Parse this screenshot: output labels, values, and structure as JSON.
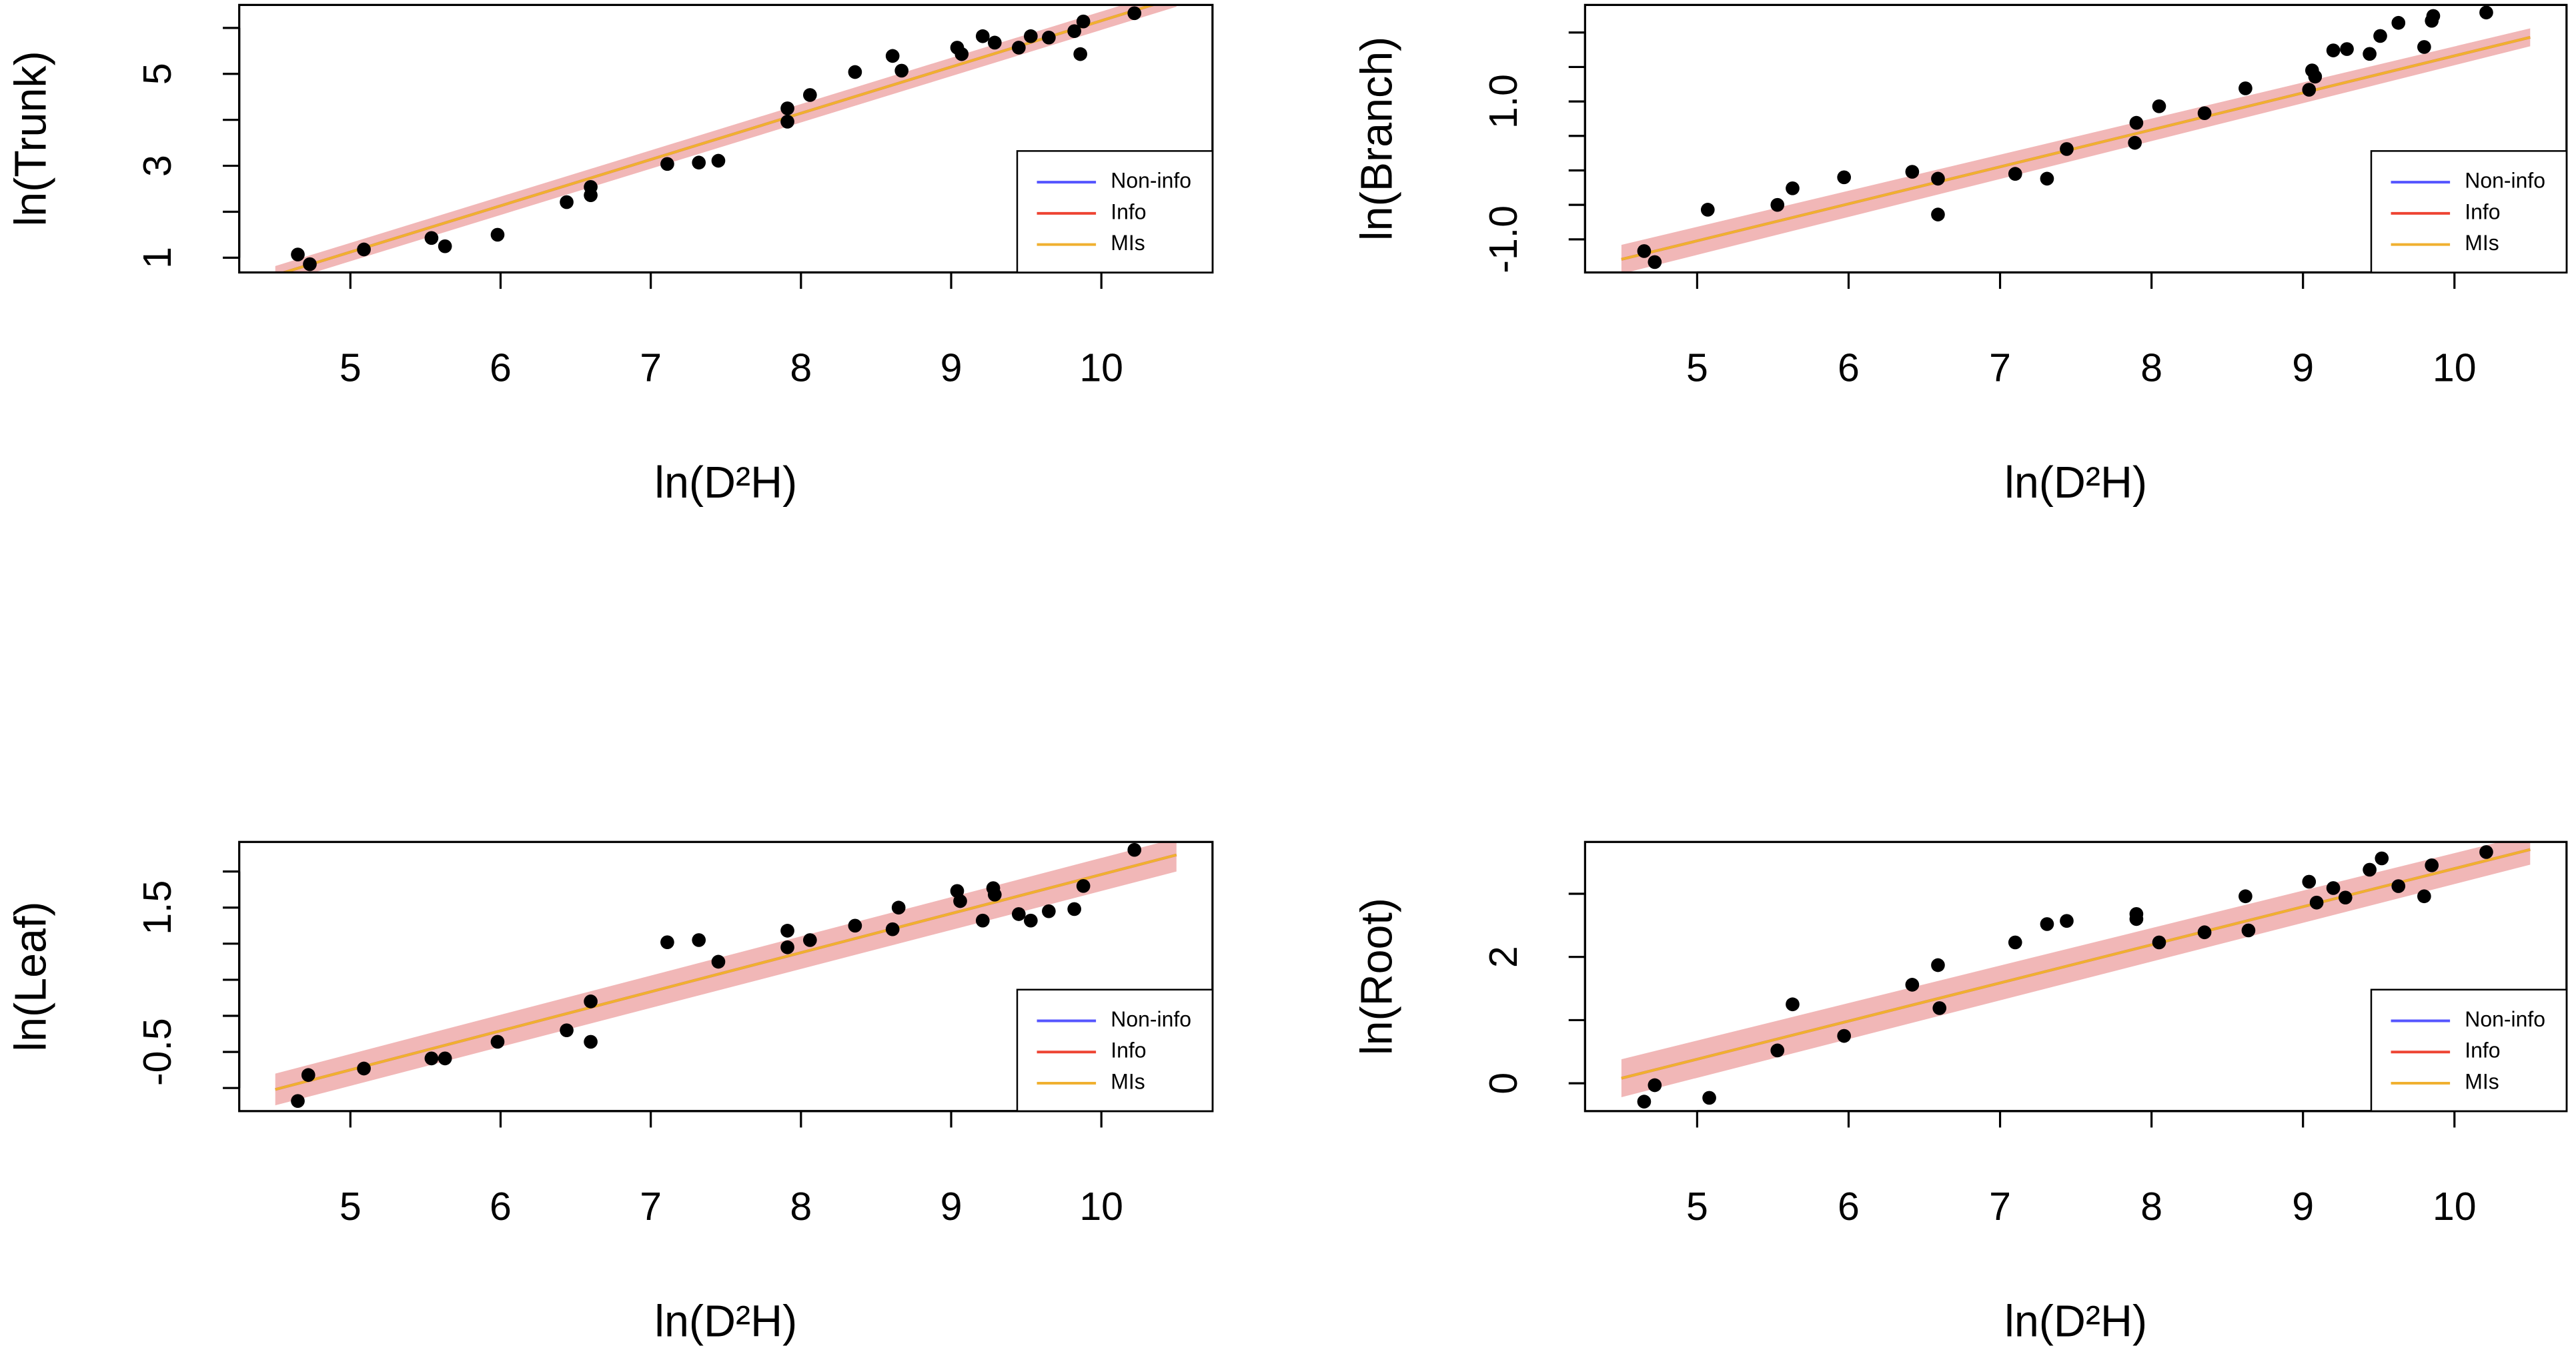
{
  "chart_data": [
    {
      "type": "scatter",
      "xlabel": "ln(D²H)",
      "ylabel": "ln(Trunk)",
      "x": [
        4.65,
        4.73,
        5.09,
        5.54,
        5.63,
        5.98,
        6.44,
        6.6,
        6.6,
        7.11,
        7.32,
        7.45,
        7.91,
        7.91,
        8.06,
        8.36,
        8.61,
        8.67,
        9.04,
        9.07,
        9.21,
        9.29,
        9.45,
        9.53,
        9.65,
        9.82,
        9.86,
        9.88,
        10.22
      ],
      "y": [
        1.07,
        0.86,
        1.18,
        1.43,
        1.25,
        1.5,
        2.21,
        2.54,
        2.36,
        3.04,
        3.07,
        3.11,
        4.25,
        3.96,
        4.54,
        5.04,
        5.39,
        5.07,
        5.57,
        5.43,
        5.82,
        5.68,
        5.57,
        5.82,
        5.79,
        5.93,
        5.43,
        6.14,
        6.32
      ],
      "point_color": "#000000",
      "band": {
        "x": [
          4.5,
          10.5
        ],
        "lower": [
          0.42,
          6.46
        ],
        "upper": [
          0.82,
          6.86
        ],
        "color": "#e06060"
      },
      "series": [
        {
          "name": "Non-info",
          "color": "#5555ff",
          "x": [
            4.5,
            10.5
          ],
          "values": [
            0.62,
            6.66
          ]
        },
        {
          "name": "Info",
          "color": "#ee4433",
          "x": [
            4.5,
            10.5
          ],
          "values": [
            0.62,
            6.66
          ]
        },
        {
          "name": "MIs",
          "color": "#f0b030",
          "x": [
            4.5,
            10.5
          ],
          "values": [
            0.62,
            6.66
          ]
        }
      ],
      "xlim": [
        4.26,
        10.74
      ],
      "ylim": [
        0.68,
        6.5
      ],
      "xticks": [
        5,
        6,
        7,
        8,
        9,
        10
      ],
      "yticks": [
        1,
        3,
        5
      ],
      "yticks_unlabeled": [
        2,
        4,
        6
      ],
      "legend": "bottomright"
    },
    {
      "type": "scatter",
      "xlabel": "ln(D²H)",
      "ylabel": "ln(Branch)",
      "x": [
        4.65,
        4.72,
        5.07,
        5.53,
        5.63,
        5.97,
        6.42,
        6.59,
        6.59,
        7.1,
        7.31,
        7.44,
        7.89,
        7.9,
        8.05,
        8.35,
        8.62,
        9.04,
        9.06,
        9.08,
        9.2,
        9.29,
        9.44,
        9.51,
        9.63,
        9.8,
        9.85,
        9.86,
        10.21
      ],
      "y": [
        -1.17,
        -1.33,
        -0.57,
        -0.5,
        -0.26,
        -0.1,
        -0.02,
        -0.12,
        -0.64,
        -0.05,
        -0.12,
        0.31,
        0.4,
        0.69,
        0.93,
        0.83,
        1.19,
        1.17,
        1.45,
        1.36,
        1.74,
        1.76,
        1.69,
        1.95,
        2.14,
        1.79,
        2.17,
        2.24,
        2.29
      ],
      "point_color": "#000000",
      "band": {
        "x": [
          4.5,
          10.5
        ],
        "lower": [
          -1.5,
          1.8
        ],
        "upper": [
          -1.08,
          2.06
        ],
        "color": "#e06060"
      },
      "series": [
        {
          "name": "Non-info",
          "color": "#5555ff",
          "x": [
            4.5,
            10.5
          ],
          "values": [
            -1.29,
            1.93
          ]
        },
        {
          "name": "Info",
          "color": "#ee4433",
          "x": [
            4.5,
            10.5
          ],
          "values": [
            -1.29,
            1.93
          ]
        },
        {
          "name": "MIs",
          "color": "#f0b030",
          "x": [
            4.5,
            10.5
          ],
          "values": [
            -1.29,
            1.93
          ]
        }
      ],
      "xlim": [
        4.26,
        10.74
      ],
      "ylim": [
        -1.48,
        2.4
      ],
      "xticks": [
        5,
        6,
        7,
        8,
        9,
        10
      ],
      "yticks": [
        {
          "value": -1.0,
          "label": "-1.0"
        },
        {
          "value": 1.0,
          "label": "1.0"
        }
      ],
      "yticks_unlabeled": [
        -0.5,
        0,
        0.5,
        1.5,
        2.0
      ],
      "legend": "bottomright"
    },
    {
      "type": "scatter",
      "xlabel": "ln(D²H)",
      "ylabel": "ln(Leaf)",
      "x": [
        4.65,
        4.72,
        5.09,
        5.54,
        5.63,
        5.98,
        6.44,
        6.6,
        6.6,
        7.11,
        7.32,
        7.45,
        7.91,
        7.91,
        8.06,
        8.36,
        8.61,
        8.65,
        9.04,
        9.06,
        9.21,
        9.28,
        9.29,
        9.45,
        9.53,
        9.65,
        9.82,
        9.88,
        10.22
      ],
      "y": [
        -1.18,
        -0.82,
        -0.73,
        -0.59,
        -0.59,
        -0.36,
        -0.2,
        0.2,
        -0.36,
        1.02,
        1.05,
        0.75,
        1.18,
        0.95,
        1.05,
        1.25,
        1.2,
        1.5,
        1.73,
        1.59,
        1.32,
        1.77,
        1.68,
        1.41,
        1.32,
        1.45,
        1.48,
        1.8,
        2.3
      ],
      "point_color": "#000000",
      "band": {
        "x": [
          4.5,
          10.5
        ],
        "lower": [
          -1.24,
          2.0
        ],
        "upper": [
          -0.8,
          2.46
        ],
        "color": "#e06060"
      },
      "series": [
        {
          "name": "Non-info",
          "color": "#5555ff",
          "x": [
            4.5,
            10.5
          ],
          "values": [
            -1.02,
            2.23
          ]
        },
        {
          "name": "Info",
          "color": "#ee4433",
          "x": [
            4.5,
            10.5
          ],
          "values": [
            -1.02,
            2.23
          ]
        },
        {
          "name": "MIs",
          "color": "#f0b030",
          "x": [
            4.5,
            10.5
          ],
          "values": [
            -1.02,
            2.23
          ]
        }
      ],
      "xlim": [
        4.26,
        10.74
      ],
      "ylim": [
        -1.32,
        2.41
      ],
      "xticks": [
        5,
        6,
        7,
        8,
        9,
        10
      ],
      "yticks": [
        {
          "value": -0.5,
          "label": "-0.5"
        },
        1.5
      ],
      "yticks_unlabeled": [
        -1.0,
        0,
        0.5,
        1.0,
        2.0
      ],
      "legend": "bottomright"
    },
    {
      "type": "scatter",
      "xlabel": "ln(D²H)",
      "ylabel": "ln(Root)",
      "x": [
        4.65,
        4.72,
        5.08,
        5.53,
        5.63,
        5.97,
        6.42,
        6.59,
        6.6,
        7.1,
        7.31,
        7.44,
        7.9,
        7.9,
        8.05,
        8.35,
        8.62,
        8.64,
        9.04,
        9.09,
        9.2,
        9.28,
        9.44,
        9.52,
        9.63,
        9.8,
        9.85,
        10.21
      ],
      "y": [
        -0.29,
        -0.03,
        -0.23,
        0.52,
        1.25,
        0.75,
        1.56,
        1.87,
        1.19,
        2.23,
        2.52,
        2.57,
        2.68,
        2.6,
        2.23,
        2.39,
        2.96,
        2.42,
        3.19,
        2.86,
        3.09,
        2.94,
        3.38,
        3.56,
        3.12,
        2.96,
        3.45,
        3.66
      ],
      "point_color": "#000000",
      "band": {
        "x": [
          4.5,
          10.5
        ],
        "lower": [
          -0.22,
          3.46
        ],
        "upper": [
          0.38,
          3.94
        ],
        "color": "#e06060"
      },
      "series": [
        {
          "name": "Non-info",
          "color": "#5555ff",
          "x": [
            4.5,
            10.5
          ],
          "values": [
            0.08,
            3.7
          ]
        },
        {
          "name": "Info",
          "color": "#ee4433",
          "x": [
            4.5,
            10.5
          ],
          "values": [
            0.08,
            3.7
          ]
        },
        {
          "name": "MIs",
          "color": "#f0b030",
          "x": [
            4.5,
            10.5
          ],
          "values": [
            0.08,
            3.7
          ]
        }
      ],
      "xlim": [
        4.26,
        10.74
      ],
      "ylim": [
        -0.44,
        3.82
      ],
      "xticks": [
        5,
        6,
        7,
        8,
        9,
        10
      ],
      "yticks": [
        0,
        2
      ],
      "yticks_unlabeled": [
        1,
        3
      ],
      "legend": "bottomright"
    }
  ]
}
